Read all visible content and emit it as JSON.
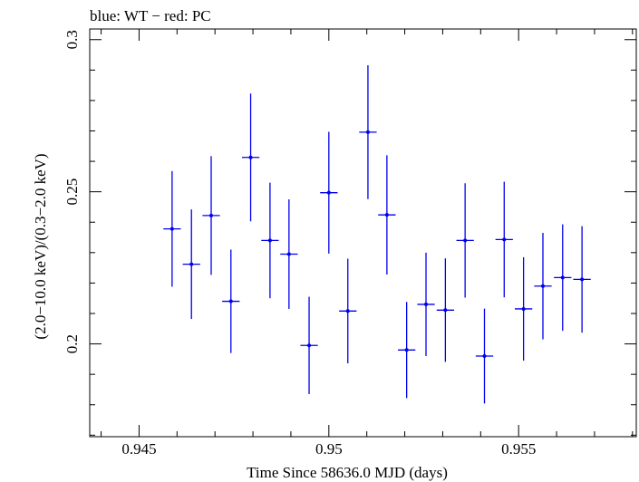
{
  "chart_data": {
    "type": "scatter",
    "title": "blue: WT − red: PC",
    "xlabel": "Time Since 58636.0 MJD (days)",
    "ylabel": "(2.0−10.0 keV)/(0.3−2.0 keV)",
    "xlim": [
      0.9437,
      0.9581
    ],
    "ylim": [
      0.1695,
      0.3035
    ],
    "xticks": [
      0.945,
      0.95,
      0.955
    ],
    "xtick_labels": [
      "0.945",
      "0.95",
      "0.955"
    ],
    "yticks": [
      0.2,
      0.25,
      0.3
    ],
    "ytick_labels": [
      "0.2",
      "0.25",
      "0.3"
    ],
    "grid": false,
    "series": [
      {
        "color": "#0000ee",
        "points": [
          {
            "x": 0.94587,
            "y": 0.2378,
            "xerr": 0.00023,
            "yerr": 0.019
          },
          {
            "x": 0.94638,
            "y": 0.2262,
            "xerr": 0.00023,
            "yerr": 0.018
          },
          {
            "x": 0.9469,
            "y": 0.2422,
            "xerr": 0.00023,
            "yerr": 0.0195
          },
          {
            "x": 0.94742,
            "y": 0.214,
            "xerr": 0.00023,
            "yerr": 0.017
          },
          {
            "x": 0.94794,
            "y": 0.2613,
            "xerr": 0.00023,
            "yerr": 0.021
          },
          {
            "x": 0.94845,
            "y": 0.234,
            "xerr": 0.00023,
            "yerr": 0.019
          },
          {
            "x": 0.94895,
            "y": 0.2295,
            "xerr": 0.00023,
            "yerr": 0.018
          },
          {
            "x": 0.94948,
            "y": 0.1995,
            "xerr": 0.00023,
            "yerr": 0.016
          },
          {
            "x": 0.95,
            "y": 0.2497,
            "xerr": 0.00023,
            "yerr": 0.02
          },
          {
            "x": 0.9505,
            "y": 0.2108,
            "xerr": 0.00023,
            "yerr": 0.0172
          },
          {
            "x": 0.95103,
            "y": 0.2696,
            "xerr": 0.00023,
            "yerr": 0.022
          },
          {
            "x": 0.95153,
            "y": 0.2424,
            "xerr": 0.00023,
            "yerr": 0.0196
          },
          {
            "x": 0.95205,
            "y": 0.198,
            "xerr": 0.00023,
            "yerr": 0.0158
          },
          {
            "x": 0.95256,
            "y": 0.213,
            "xerr": 0.00023,
            "yerr": 0.017
          },
          {
            "x": 0.95307,
            "y": 0.2111,
            "xerr": 0.00023,
            "yerr": 0.017
          },
          {
            "x": 0.95359,
            "y": 0.234,
            "xerr": 0.00023,
            "yerr": 0.0188
          },
          {
            "x": 0.9541,
            "y": 0.196,
            "xerr": 0.00023,
            "yerr": 0.0156
          },
          {
            "x": 0.95462,
            "y": 0.2343,
            "xerr": 0.00023,
            "yerr": 0.019
          },
          {
            "x": 0.95513,
            "y": 0.2115,
            "xerr": 0.00023,
            "yerr": 0.017
          },
          {
            "x": 0.95564,
            "y": 0.219,
            "xerr": 0.00023,
            "yerr": 0.0175
          },
          {
            "x": 0.95616,
            "y": 0.2218,
            "xerr": 0.00023,
            "yerr": 0.0175
          },
          {
            "x": 0.95667,
            "y": 0.2212,
            "xerr": 0.00023,
            "yerr": 0.0175
          }
        ]
      }
    ]
  },
  "styles": {
    "axis_color": "#000000",
    "point_color": "#0000ee"
  }
}
